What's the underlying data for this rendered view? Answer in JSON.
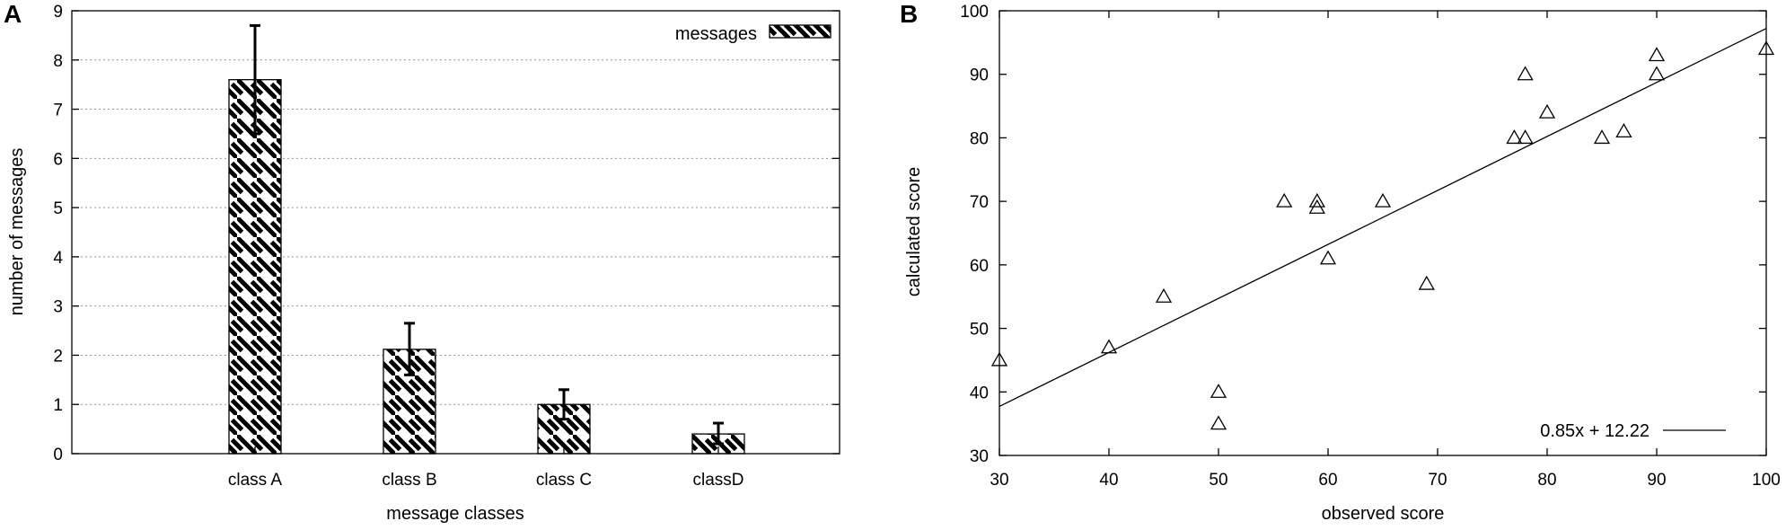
{
  "panels": {
    "a": "A",
    "b": "B"
  },
  "chart_data": [
    {
      "type": "bar",
      "categories": [
        "class A",
        "class B",
        "class C",
        "classD"
      ],
      "series": [
        {
          "name": "messages",
          "values": [
            7.6,
            2.12,
            1.0,
            0.4
          ],
          "error_low": [
            6.5,
            1.6,
            0.7,
            0.2
          ],
          "error_high": [
            8.7,
            2.65,
            1.3,
            0.62
          ]
        }
      ],
      "xlabel": "message classes",
      "ylabel": "number of messages",
      "ylim": [
        0,
        9
      ],
      "yticks": [
        0,
        1,
        2,
        3,
        4,
        5,
        6,
        7,
        8,
        9
      ],
      "grid": "horizontal dotted",
      "legend": "top-right",
      "fill": "diagonal hatch"
    },
    {
      "type": "scatter",
      "points": [
        [
          30,
          45
        ],
        [
          40,
          47
        ],
        [
          45,
          55
        ],
        [
          50,
          40
        ],
        [
          50,
          35
        ],
        [
          56,
          70
        ],
        [
          59,
          70
        ],
        [
          59,
          69
        ],
        [
          60,
          61
        ],
        [
          65,
          70
        ],
        [
          69,
          57
        ],
        [
          77,
          80
        ],
        [
          78,
          80
        ],
        [
          78,
          90
        ],
        [
          80,
          84
        ],
        [
          85,
          80
        ],
        [
          87,
          81
        ],
        [
          90,
          93
        ],
        [
          90,
          90
        ],
        [
          100,
          94
        ]
      ],
      "marker": "triangle",
      "fit_line": {
        "label": "0.85x + 12.22",
        "slope": 0.85,
        "intercept": 12.22
      },
      "xlabel": "observed score",
      "ylabel": "calculated score",
      "xlim": [
        30,
        100
      ],
      "ylim": [
        30,
        100
      ],
      "xticks": [
        30,
        40,
        50,
        60,
        70,
        80,
        90,
        100
      ],
      "yticks": [
        30,
        40,
        50,
        60,
        70,
        80,
        90,
        100
      ],
      "legend": "bottom-right",
      "grid": "off"
    }
  ]
}
